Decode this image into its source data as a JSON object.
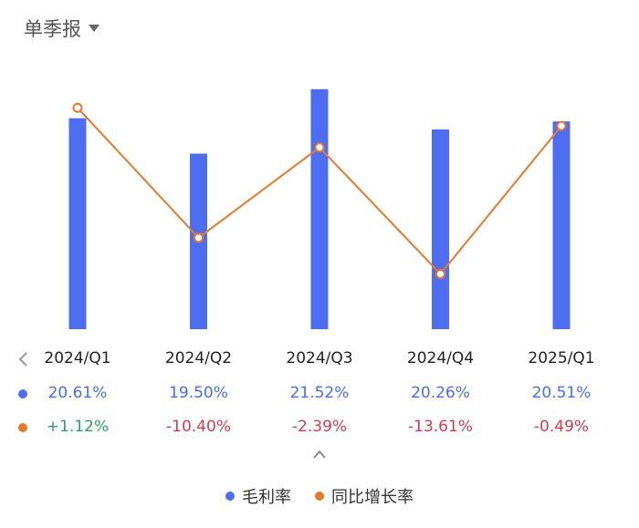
{
  "period_selector": {
    "label": "单季报",
    "icon": "caret-down-icon"
  },
  "colors": {
    "bar": "#4e6ef2",
    "line": "#e8792a",
    "positive": "#2e9e68",
    "negative": "#d23c50"
  },
  "chart_data": {
    "type": "bar",
    "categories": [
      "2024/Q1",
      "2024/Q2",
      "2024/Q3",
      "2024/Q4",
      "2025/Q1"
    ],
    "series": [
      {
        "name": "毛利率",
        "type": "bar",
        "values": [
          20.61,
          19.5,
          21.52,
          20.26,
          20.51
        ]
      },
      {
        "name": "同比增长率",
        "type": "line",
        "values": [
          1.12,
          -10.4,
          -2.39,
          -13.61,
          -0.49
        ]
      }
    ],
    "grid": false,
    "legend": "bottom"
  },
  "table": {
    "value_labels": [
      "20.61%",
      "19.50%",
      "21.52%",
      "20.26%",
      "20.51%"
    ],
    "yoy_labels": [
      "+1.12%",
      "-10.40%",
      "-2.39%",
      "-13.61%",
      "-0.49%"
    ]
  },
  "legend": {
    "items": [
      "毛利率",
      "同比增长率"
    ]
  }
}
